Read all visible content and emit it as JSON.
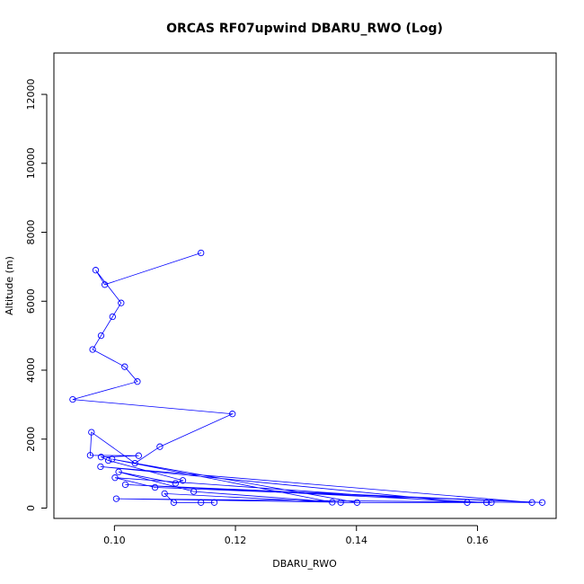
{
  "chart_data": {
    "type": "line",
    "title": "ORCAS RF07upwind DBARU_RWO (Log)",
    "xlabel": "DBARU_RWO",
    "ylabel": "Altitude (m)",
    "xlim": [
      0.09,
      0.173
    ],
    "ylim": [
      -300,
      13200
    ],
    "xticks": [
      0.1,
      0.12,
      0.14,
      0.16
    ],
    "xtick_labels": [
      "0.10",
      "0.12",
      "0.14",
      "0.16"
    ],
    "yticks": [
      0,
      2000,
      4000,
      6000,
      8000,
      10000,
      12000
    ],
    "ytick_labels": [
      "0",
      "2000",
      "4000",
      "6000",
      "8000",
      "10000",
      "12000"
    ],
    "grid": false,
    "line_color": "#0000ff",
    "marker": "open-circle",
    "series": [
      {
        "x": [
          0.1143,
          0.0984,
          0.0969,
          0.1011,
          0.0997,
          0.0978,
          0.0964,
          0.1017,
          0.1038,
          0.0931,
          0.1195,
          0.1075,
          0.1034,
          0.0962,
          0.096,
          0.104,
          0.0978,
          0.099,
          0.1113,
          0.1101,
          0.1007,
          0.1131,
          0.1374,
          0.1623,
          0.1615,
          0.1018,
          0.1707,
          0.1067,
          0.1001,
          0.1583,
          0.0977,
          0.169,
          0.1003,
          0.1401,
          0.0996,
          0.136,
          0.1083,
          0.1098,
          0.1143,
          0.1165
        ],
        "y": [
          7400,
          6480,
          6900,
          5950,
          5550,
          5000,
          4600,
          4100,
          3670,
          3150,
          2730,
          1780,
          1300,
          2200,
          1530,
          1520,
          1480,
          1380,
          800,
          720,
          1050,
          480,
          160,
          160,
          160,
          680,
          160,
          600,
          880,
          160,
          1200,
          160,
          270,
          160,
          1420,
          170,
          420,
          160,
          160,
          160
        ]
      }
    ]
  }
}
